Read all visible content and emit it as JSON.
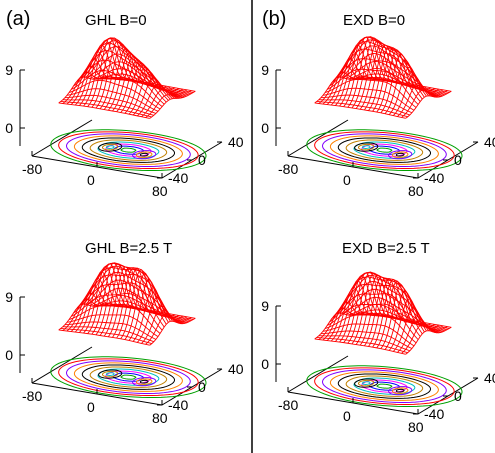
{
  "panel_letters": [
    "(a)",
    "(b)"
  ],
  "chart_data": [
    {
      "type": "surface-3d-with-contours",
      "title": "GHL   B=0",
      "ticks": {
        "x": [
          "-80",
          "0",
          "80"
        ],
        "y": [
          "40",
          "0",
          "-40"
        ],
        "z": [
          "9",
          "0"
        ]
      },
      "peaks": 2,
      "peak_balance": 0.55,
      "colors": {
        "surface": "#ff0000"
      }
    },
    {
      "type": "surface-3d-with-contours",
      "title": "EXD   B=0",
      "ticks": {
        "x": [
          "-80",
          "0",
          "80"
        ],
        "y": [
          "40",
          "0",
          "-40"
        ],
        "z": [
          "9",
          "0"
        ]
      },
      "peaks": 2,
      "peak_balance": 0.8,
      "colors": {
        "surface": "#ff0000"
      }
    },
    {
      "type": "surface-3d-with-contours",
      "title": "GHL   B=2.5 T",
      "ticks": {
        "x": [
          "-80",
          "0",
          "80"
        ],
        "y": [
          "40",
          "0",
          "-40"
        ],
        "z": [
          "9",
          "0"
        ]
      },
      "peaks": 2,
      "peak_balance": 0.95,
      "colors": {
        "surface": "#ff0000"
      }
    },
    {
      "type": "surface-3d-with-contours",
      "title": "EXD   B=2.5 T",
      "ticks": {
        "x": [
          "-80",
          "0",
          "80"
        ],
        "y": [
          "40",
          "0",
          "-40"
        ],
        "z": [
          "9",
          "0"
        ]
      },
      "peaks": 2,
      "peak_balance": 0.9,
      "colors": {
        "surface": "#ff0000"
      }
    }
  ],
  "contour_colors": [
    "#ff0000",
    "#00a000",
    "#0000ff",
    "#ff00ff",
    "#00c0c0",
    "#c08000",
    "#000000",
    "#ff8000",
    "#8000ff"
  ]
}
